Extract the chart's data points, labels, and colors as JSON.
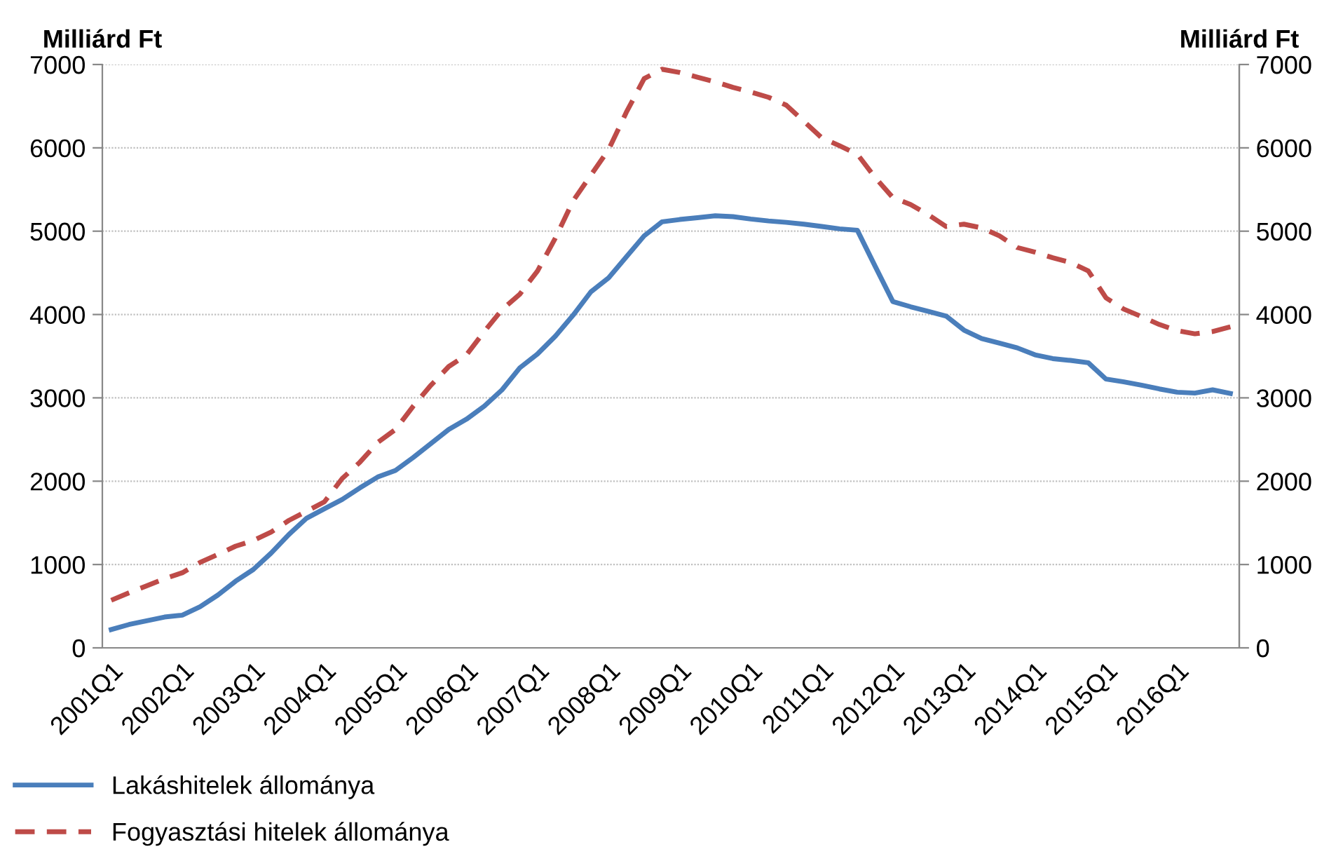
{
  "chart_data": {
    "type": "line",
    "ylabel": "Milliárd Ft",
    "y2label": "Milliárd Ft",
    "categories": [
      "2001Q1",
      null,
      null,
      null,
      "2002Q1",
      null,
      null,
      null,
      "2003Q1",
      null,
      null,
      null,
      "2004Q1",
      null,
      null,
      null,
      "2005Q1",
      null,
      null,
      null,
      "2006Q1",
      null,
      null,
      null,
      "2007Q1",
      null,
      null,
      null,
      "2008Q1",
      null,
      null,
      null,
      "2009Q1",
      null,
      null,
      null,
      "2010Q1",
      null,
      null,
      null,
      "2011Q1",
      null,
      null,
      null,
      "2012Q1",
      null,
      null,
      null,
      "2013Q1",
      null,
      null,
      null,
      "2014Q1",
      null,
      null,
      null,
      "2015Q1",
      null,
      null,
      null,
      "2016Q1",
      null,
      null,
      null
    ],
    "series": [
      {
        "name": "Lakáshitelek állománya",
        "color": "#4a7ebb",
        "line_style": "solid",
        "values": [
          220,
          280,
          325,
          370,
          392,
          493,
          633,
          800,
          940,
          1137,
          1360,
          1556,
          1669,
          1780,
          1920,
          2050,
          2128,
          2284,
          2452,
          2620,
          2744,
          2900,
          3096,
          3360,
          3527,
          3740,
          3992,
          4272,
          4440,
          4692,
          4944,
          5112,
          5140,
          5162,
          5185,
          5174,
          5146,
          5123,
          5106,
          5084,
          5056,
          5028,
          5011,
          4580,
          4155,
          4093,
          4037,
          3981,
          3813,
          3712,
          3656,
          3600,
          3516,
          3471,
          3449,
          3421,
          3225,
          3192,
          3152,
          3107,
          3068,
          3057,
          3096,
          3052
        ]
      },
      {
        "name": "Fogyasztási hitelek állománya",
        "color": "#be4b48",
        "line_style": "dashed",
        "values": [
          571,
          660,
          745,
          829,
          901,
          1025,
          1120,
          1220,
          1288,
          1389,
          1529,
          1640,
          1752,
          2032,
          2228,
          2464,
          2620,
          2900,
          3152,
          3376,
          3516,
          3796,
          4059,
          4244,
          4524,
          4916,
          5364,
          5672,
          5980,
          6428,
          6831,
          6943,
          6904,
          6848,
          6792,
          6725,
          6669,
          6607,
          6512,
          6316,
          6120,
          6025,
          5924,
          5644,
          5403,
          5319,
          5196,
          5056,
          5084,
          5039,
          4944,
          4804,
          4748,
          4681,
          4625,
          4524,
          4199,
          4065,
          3975,
          3880,
          3807,
          3768,
          3796,
          3852
        ]
      }
    ],
    "ylim": [
      0,
      7000
    ],
    "yticks": [
      0,
      1000,
      2000,
      3000,
      4000,
      5000,
      6000,
      7000
    ],
    "y2lim": [
      0,
      7000
    ],
    "y2ticks": [
      0,
      1000,
      2000,
      3000,
      4000,
      5000,
      6000,
      7000
    ],
    "grid": "y",
    "legend": "bottom left",
    "marker": "none"
  }
}
